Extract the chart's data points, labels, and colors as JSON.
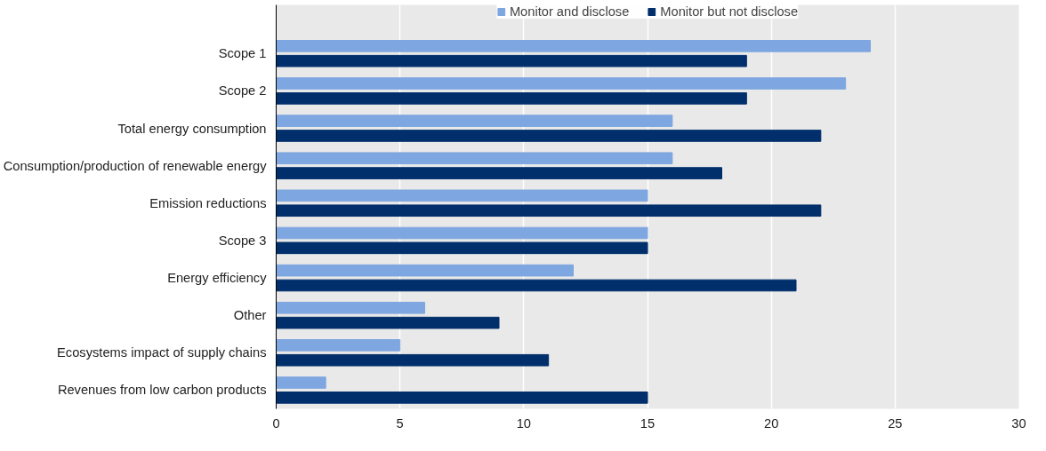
{
  "chart_data": {
    "type": "bar",
    "orientation": "horizontal",
    "categories": [
      "Scope 1",
      "Scope 2",
      "Total energy consumption",
      "Consumption/production of renewable energy",
      "Emission reductions",
      "Scope 3",
      "Energy efficiency",
      "Other",
      "Ecosystems impact of supply chains",
      "Revenues from low carbon products"
    ],
    "series": [
      {
        "name": "Monitor and disclose",
        "color": "#7ea6e0",
        "values": [
          24,
          23,
          16,
          16,
          15,
          15,
          12,
          6,
          5,
          2
        ]
      },
      {
        "name": "Monitor but not disclose",
        "color": "#002f6c",
        "values": [
          19,
          19,
          22,
          18,
          22,
          15,
          21,
          9,
          11,
          15
        ]
      }
    ],
    "xlim": [
      0,
      30
    ],
    "xticks": [
      0,
      5,
      10,
      15,
      20,
      25,
      30
    ],
    "grid": "x",
    "legend": "top"
  }
}
